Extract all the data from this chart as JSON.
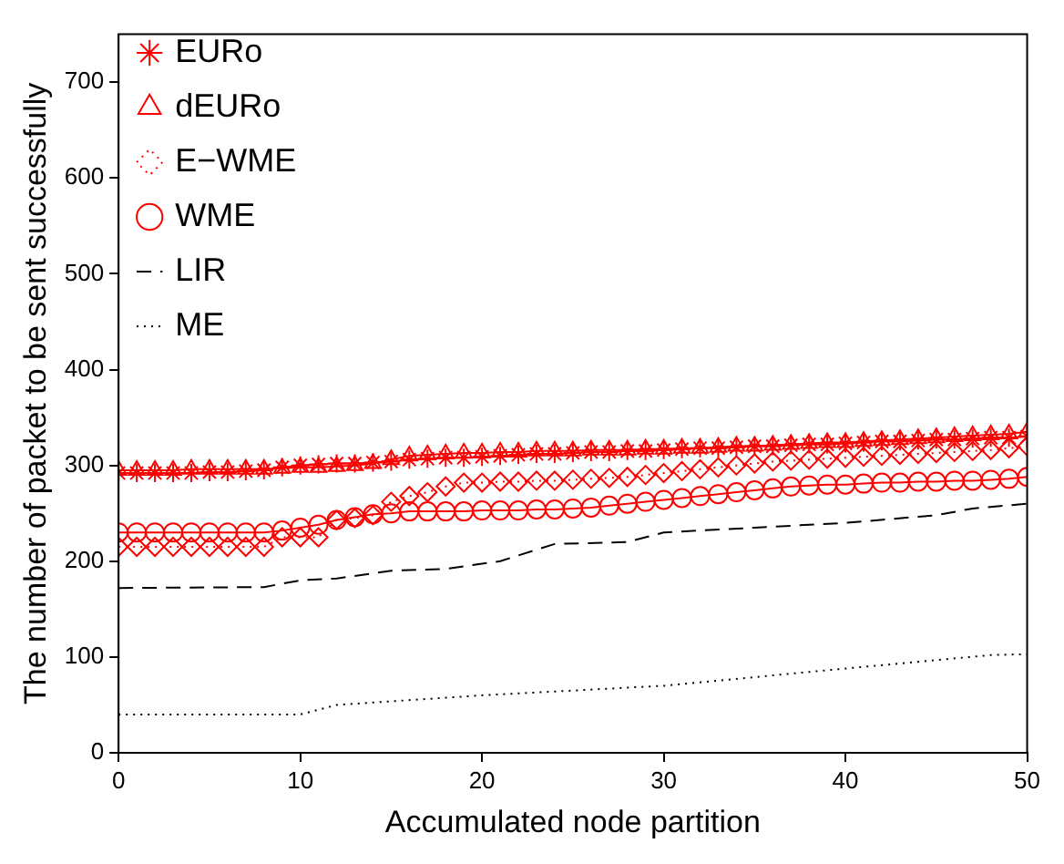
{
  "chart_data": {
    "type": "line",
    "xlabel": "Accumulated node partition",
    "ylabel": "The number of packet to be sent successfully",
    "xlim": [
      0,
      50
    ],
    "xticks": [
      0,
      10,
      20,
      30,
      40,
      50
    ],
    "ylim": [
      0,
      750
    ],
    "yticks": [
      0,
      100,
      200,
      300,
      400,
      500,
      600,
      700
    ],
    "grid": false,
    "legend": "top left",
    "x": [
      0,
      1,
      2,
      3,
      4,
      5,
      6,
      7,
      8,
      9,
      10,
      11,
      12,
      13,
      14,
      15,
      16,
      17,
      18,
      19,
      20,
      21,
      22,
      23,
      24,
      25,
      26,
      27,
      28,
      29,
      30,
      31,
      32,
      33,
      34,
      35,
      36,
      37,
      38,
      39,
      40,
      41,
      42,
      43,
      44,
      45,
      46,
      47,
      48,
      49,
      50
    ],
    "series": [
      {
        "name": "EURo",
        "color": "#ff0000",
        "marker": "cross",
        "line_style": "solid",
        "values": [
          292,
          292,
          292,
          292,
          292,
          293,
          293,
          294,
          295,
          298,
          300,
          301,
          302,
          302,
          303,
          304,
          306,
          307,
          308,
          308,
          309,
          310,
          311,
          312,
          312,
          313,
          314,
          314,
          315,
          315,
          316,
          317,
          318,
          318,
          319,
          320,
          320,
          321,
          322,
          322,
          323,
          324,
          325,
          325,
          326,
          327,
          327,
          328,
          329,
          329,
          330
        ]
      },
      {
        "name": "dEURo",
        "color": "#ff0000",
        "marker": "triangle",
        "line_style": "solid",
        "values": [
          295,
          295,
          295,
          295,
          296,
          296,
          296,
          296,
          296,
          297,
          298,
          298,
          299,
          300,
          302,
          306,
          310,
          311,
          312,
          313,
          313,
          314,
          314,
          315,
          315,
          315,
          316,
          316,
          316,
          317,
          317,
          318,
          318,
          319,
          320,
          320,
          321,
          322,
          323,
          324,
          324,
          325,
          326,
          327,
          328,
          329,
          330,
          331,
          332,
          333,
          335
        ]
      },
      {
        "name": "E−WME",
        "color": "#ff0000",
        "marker": "diamond",
        "line_style": "dotted",
        "values": [
          215,
          215,
          215,
          215,
          215,
          215,
          215,
          215,
          215,
          225,
          225,
          225,
          243,
          245,
          248,
          262,
          268,
          272,
          278,
          282,
          282,
          283,
          283,
          284,
          284,
          285,
          286,
          287,
          288,
          290,
          292,
          294,
          296,
          298,
          300,
          302,
          304,
          305,
          306,
          307,
          308,
          309,
          310,
          311,
          312,
          313,
          314,
          315,
          316,
          318,
          320
        ]
      },
      {
        "name": "WME",
        "color": "#ff0000",
        "marker": "circle",
        "line_style": "solid",
        "values": [
          230,
          230,
          230,
          230,
          230,
          230,
          230,
          230,
          230,
          232,
          235,
          238,
          243,
          246,
          249,
          250,
          252,
          252,
          252,
          252,
          253,
          253,
          253,
          254,
          254,
          255,
          256,
          258,
          260,
          262,
          264,
          266,
          268,
          270,
          272,
          274,
          276,
          278,
          279,
          280,
          280,
          281,
          282,
          282,
          283,
          283,
          284,
          284,
          285,
          286,
          288
        ]
      },
      {
        "name": "LIR",
        "color": "#000000",
        "marker": "none",
        "line_style": "dashed",
        "x": [
          0,
          8,
          10,
          12,
          15,
          18,
          21,
          24,
          28,
          30,
          35,
          40,
          45,
          47,
          50
        ],
        "values": [
          172,
          173,
          180,
          182,
          190,
          192,
          200,
          218,
          220,
          230,
          235,
          240,
          248,
          255,
          260
        ]
      },
      {
        "name": "ME",
        "color": "#000000",
        "marker": "none",
        "line_style": "dotted",
        "x": [
          0,
          10,
          12,
          20,
          30,
          40,
          48,
          50
        ],
        "values": [
          40,
          40,
          50,
          60,
          70,
          88,
          102,
          103
        ]
      }
    ]
  }
}
